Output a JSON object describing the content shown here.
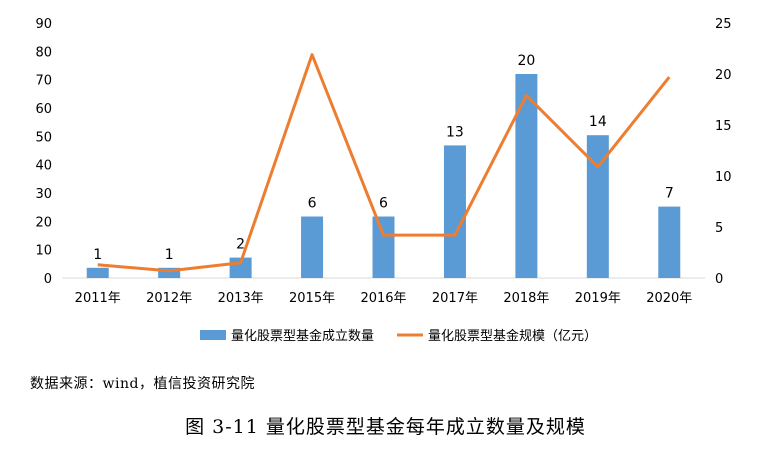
{
  "chart_data": {
    "type": "bar+line",
    "categories": [
      "2011年",
      "2012年",
      "2013年",
      "2015年",
      "2016年",
      "2017年",
      "2018年",
      "2019年",
      "2020年"
    ],
    "bar_series": {
      "name": "量化股票型基金成立数量",
      "values": [
        1,
        1,
        2,
        6,
        6,
        13,
        20,
        14,
        7
      ],
      "data_labels": [
        "1",
        "1",
        "2",
        "6",
        "6",
        "13",
        "20",
        "14",
        "7"
      ],
      "color": "#5B9BD5",
      "axis": "left"
    },
    "line_series": {
      "name": "量化股票型基金规模（亿元）",
      "values": [
        1.3,
        0.7,
        1.5,
        21.9,
        4.2,
        4.2,
        17.9,
        10.9,
        19.7
      ],
      "color": "#ED7D31",
      "axis": "right"
    },
    "left_axis": {
      "ylim": [
        0,
        90
      ],
      "ticks": [
        "0",
        "10",
        "20",
        "30",
        "40",
        "50",
        "60",
        "70",
        "80",
        "90"
      ]
    },
    "right_axis": {
      "ylim": [
        0,
        25
      ],
      "ticks": [
        "0",
        "5",
        "10",
        "15",
        "20",
        "25"
      ]
    },
    "legend_position": "bottom",
    "grid": false
  },
  "source_text": "数据来源：wind，植信投资研究院",
  "caption": "图 3-11  量化股票型基金每年成立数量及规模"
}
